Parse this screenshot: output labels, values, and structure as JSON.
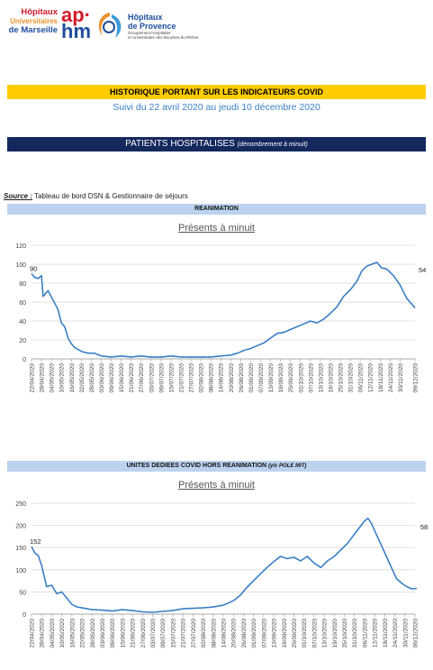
{
  "logos": {
    "hum_line1": "Hôpitaux",
    "hum_line2": "Universitaires",
    "hum_line3": "de Marseille",
    "aphm_top": "ap·",
    "aphm_bottom": "hm",
    "hp_line1": "Hôpitaux",
    "hp_line2": "de Provence",
    "hp_sub1": "Groupement Hospitalier",
    "hp_sub2": "et Universitaire des Bouches-du-Rhône"
  },
  "header": {
    "title": "HISTORIQUE PORTANT SUR LES INDICATEURS COVID",
    "subtitle": "Suivi du 22 avril 2020 au jeudi 10 décembre 2020",
    "section": "PATIENTS HOSPITALISES",
    "section_note": "(dénombrement à minuit)"
  },
  "source": {
    "label": "Source :",
    "text": "Tableau de bord DSN & Gestionnaire de séjours"
  },
  "colors": {
    "yellow": "#ffcc00",
    "navy": "#14285e",
    "lightblue": "#bcd2ee",
    "line": "#3a7fc4",
    "grid": "#d9d9d9"
  },
  "chart_data": [
    {
      "type": "line",
      "band_title": "REANIMATION",
      "band_note": "",
      "title": "Présents à minuit",
      "ylim": [
        0,
        120
      ],
      "yticks": [
        "0",
        "20",
        "40",
        "60",
        "80",
        "100",
        "120"
      ],
      "grid": true,
      "xtick_labels": [
        "22/04/2020",
        "28/04/2020",
        "04/05/2020",
        "10/05/2020",
        "16/05/2020",
        "22/05/2020",
        "28/05/2020",
        "03/06/2020",
        "09/06/2020",
        "15/06/2020",
        "21/06/2020",
        "27/06/2020",
        "03/07/2020",
        "09/07/2020",
        "15/07/2020",
        "21/07/2020",
        "27/07/2020",
        "02/08/2020",
        "08/08/2020",
        "14/08/2020",
        "20/08/2020",
        "26/08/2020",
        "01/09/2020",
        "07/09/2020",
        "13/09/2020",
        "19/09/2020",
        "25/09/2020",
        "01/10/2020",
        "07/10/2020",
        "13/10/2020",
        "19/10/2020",
        "25/10/2020",
        "31/10/2020",
        "06/11/2020",
        "12/11/2020",
        "18/11/2020",
        "24/11/2020",
        "30/11/2020",
        "09/12/2020"
      ],
      "first_label": "90",
      "last_label": "54",
      "series": [
        {
          "points": [
            [
              "22/04",
              90
            ],
            [
              "24/04",
              86
            ],
            [
              "26/04",
              85
            ],
            [
              "28/04",
              88
            ],
            [
              "29/04",
              66
            ],
            [
              "02/05",
              72
            ],
            [
              "05/05",
              62
            ],
            [
              "08/05",
              52
            ],
            [
              "10/05",
              38
            ],
            [
              "12/05",
              34
            ],
            [
              "14/05",
              22
            ],
            [
              "16/05",
              16
            ],
            [
              "18/05",
              12
            ],
            [
              "22/05",
              8
            ],
            [
              "26/05",
              6
            ],
            [
              "30/05",
              6
            ],
            [
              "03/06",
              3
            ],
            [
              "09/06",
              2
            ],
            [
              "15/06",
              3
            ],
            [
              "21/06",
              2
            ],
            [
              "27/06",
              3
            ],
            [
              "03/07",
              2
            ],
            [
              "09/07",
              2
            ],
            [
              "15/07",
              3
            ],
            [
              "21/07",
              2
            ],
            [
              "27/07",
              2
            ],
            [
              "02/08",
              2
            ],
            [
              "08/08",
              2
            ],
            [
              "14/08",
              3
            ],
            [
              "20/08",
              4
            ],
            [
              "24/08",
              6
            ],
            [
              "28/08",
              9
            ],
            [
              "01/09",
              11
            ],
            [
              "05/09",
              14
            ],
            [
              "09/09",
              17
            ],
            [
              "13/09",
              22
            ],
            [
              "17/09",
              27
            ],
            [
              "21/09",
              28
            ],
            [
              "25/09",
              31
            ],
            [
              "29/09",
              34
            ],
            [
              "03/10",
              37
            ],
            [
              "07/10",
              40
            ],
            [
              "11/10",
              38
            ],
            [
              "15/10",
              42
            ],
            [
              "19/10",
              48
            ],
            [
              "23/10",
              55
            ],
            [
              "27/10",
              66
            ],
            [
              "31/10",
              73
            ],
            [
              "04/11",
              82
            ],
            [
              "07/11",
              93
            ],
            [
              "10/11",
              98
            ],
            [
              "13/11",
              100
            ],
            [
              "16/11",
              102
            ],
            [
              "19/11",
              96
            ],
            [
              "22/11",
              95
            ],
            [
              "26/11",
              88
            ],
            [
              "30/11",
              78
            ],
            [
              "04/12",
              64
            ],
            [
              "07/12",
              58
            ],
            [
              "09/12",
              54
            ]
          ]
        }
      ]
    },
    {
      "type": "line",
      "band_title": "UNITES DEDIEES COVID HORS REANIMATION",
      "band_note": "(y/c POLE MIT)",
      "title": "Présents à minuit",
      "ylim": [
        0,
        250
      ],
      "yticks": [
        "0",
        "50",
        "100",
        "150",
        "200",
        "250"
      ],
      "grid": true,
      "xtick_labels": [
        "22/04/2020",
        "28/04/2020",
        "04/05/2020",
        "10/05/2020",
        "16/05/2020",
        "22/05/2020",
        "28/05/2020",
        "03/06/2020",
        "09/06/2020",
        "15/06/2020",
        "21/06/2020",
        "27/06/2020",
        "03/07/2020",
        "09/07/2020",
        "15/07/2020",
        "21/07/2020",
        "27/07/2020",
        "02/08/2020",
        "08/08/2020",
        "14/08/2020",
        "20/08/2020",
        "26/08/2020",
        "01/09/2020",
        "07/09/2020",
        "13/09/2020",
        "19/09/2020",
        "25/09/2020",
        "01/10/2020",
        "07/10/2020",
        "13/10/2020",
        "19/10/2020",
        "25/10/2020",
        "31/10/2020",
        "06/11/2020",
        "12/11/2020",
        "18/11/2020",
        "24/11/2020",
        "30/11/2020",
        "06/12/2020"
      ],
      "first_label": "152",
      "last_label": "58",
      "series": [
        {
          "points": [
            [
              "22/04",
              152
            ],
            [
              "24/04",
              138
            ],
            [
              "26/04",
              132
            ],
            [
              "28/04",
              110
            ],
            [
              "01/05",
              62
            ],
            [
              "04/05",
              65
            ],
            [
              "07/05",
              46
            ],
            [
              "10/05",
              50
            ],
            [
              "13/05",
              36
            ],
            [
              "16/05",
              22
            ],
            [
              "19/05",
              16
            ],
            [
              "22/05",
              14
            ],
            [
              "28/05",
              10
            ],
            [
              "03/06",
              9
            ],
            [
              "09/06",
              7
            ],
            [
              "15/06",
              10
            ],
            [
              "21/06",
              8
            ],
            [
              "27/06",
              5
            ],
            [
              "03/07",
              4
            ],
            [
              "09/07",
              6
            ],
            [
              "15/07",
              8
            ],
            [
              "21/07",
              12
            ],
            [
              "27/07",
              13
            ],
            [
              "02/08",
              14
            ],
            [
              "08/08",
              16
            ],
            [
              "14/08",
              20
            ],
            [
              "20/08",
              30
            ],
            [
              "24/08",
              42
            ],
            [
              "28/08",
              60
            ],
            [
              "01/09",
              75
            ],
            [
              "05/09",
              90
            ],
            [
              "09/09",
              105
            ],
            [
              "13/09",
              118
            ],
            [
              "17/09",
              130
            ],
            [
              "21/09",
              125
            ],
            [
              "25/09",
              128
            ],
            [
              "29/09",
              120
            ],
            [
              "03/10",
              130
            ],
            [
              "07/10",
              115
            ],
            [
              "11/10",
              105
            ],
            [
              "15/10",
              120
            ],
            [
              "19/10",
              130
            ],
            [
              "23/10",
              145
            ],
            [
              "27/10",
              160
            ],
            [
              "31/10",
              180
            ],
            [
              "04/11",
              200
            ],
            [
              "06/11",
              210
            ],
            [
              "08/11",
              216
            ],
            [
              "10/11",
              205
            ],
            [
              "13/11",
              180
            ],
            [
              "16/11",
              155
            ],
            [
              "19/11",
              130
            ],
            [
              "22/11",
              105
            ],
            [
              "25/11",
              80
            ],
            [
              "28/11",
              70
            ],
            [
              "01/12",
              62
            ],
            [
              "04/12",
              57
            ],
            [
              "07/12",
              58
            ]
          ]
        }
      ]
    }
  ]
}
